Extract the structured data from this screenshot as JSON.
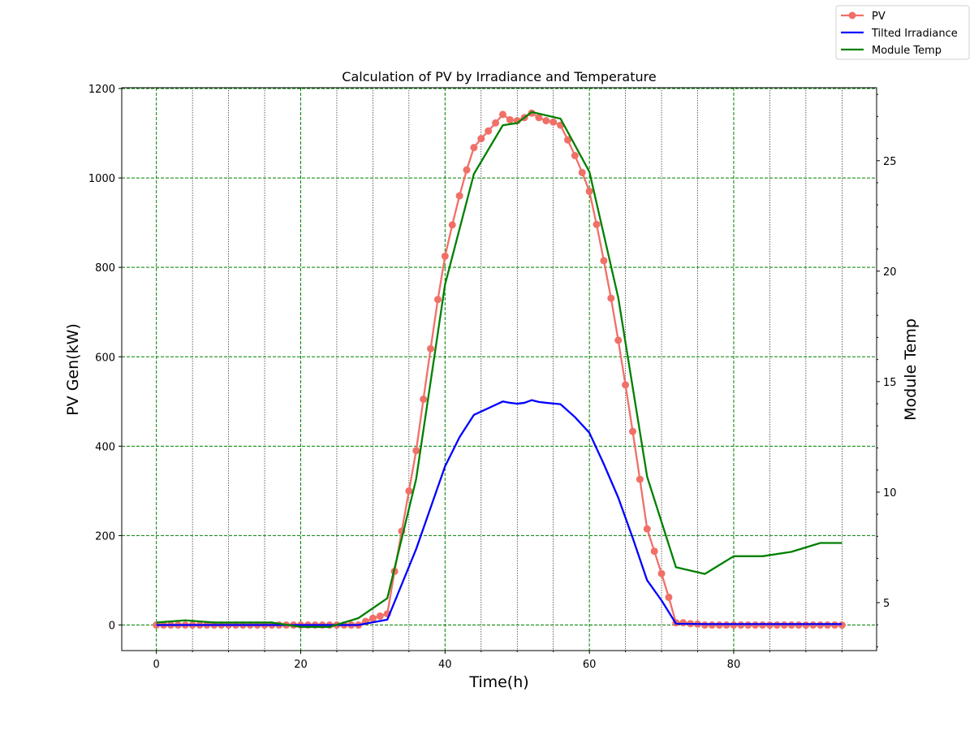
{
  "chart_data": {
    "type": "line",
    "title": "Calculation of PV by Irradiance and Temperature",
    "xlabel": "Time(h)",
    "ylabel": "PV Gen(kW)",
    "y2label": "Module Temp",
    "xlim": [
      -4.8,
      99.8
    ],
    "ylim": [
      -57.2,
      1201.8
    ],
    "y2lim": [
      2.83,
      28.3
    ],
    "xticks": [
      0,
      20,
      40,
      60,
      80
    ],
    "yticks": [
      0,
      200,
      400,
      600,
      800,
      1000,
      1200
    ],
    "y2ticks": [
      5,
      10,
      15,
      20,
      25
    ],
    "x_major_grid": [
      0,
      20,
      40,
      60,
      80
    ],
    "x_minor_grid": [
      5,
      10,
      15,
      25,
      30,
      35,
      45,
      50,
      55,
      65,
      70,
      75,
      85,
      90,
      95
    ],
    "grid": true,
    "legend_position": "top-right",
    "series": [
      {
        "name": "PV",
        "axis": "left",
        "color": "#f07068",
        "marker": "circle",
        "x": [
          0,
          1,
          2,
          3,
          4,
          5,
          6,
          7,
          8,
          9,
          10,
          11,
          12,
          13,
          14,
          15,
          16,
          17,
          18,
          19,
          20,
          21,
          22,
          23,
          24,
          25,
          26,
          27,
          28,
          29,
          30,
          31,
          32,
          33,
          34,
          35,
          36,
          37,
          38,
          39,
          40,
          41,
          42,
          43,
          44,
          45,
          46,
          47,
          48,
          49,
          50,
          51,
          52,
          53,
          54,
          55,
          56,
          57,
          58,
          59,
          60,
          61,
          62,
          63,
          64,
          65,
          66,
          67,
          68,
          69,
          70,
          71,
          72,
          73,
          74,
          75,
          76,
          77,
          78,
          79,
          80,
          81,
          82,
          83,
          84,
          85,
          86,
          87,
          88,
          89,
          90,
          91,
          92,
          93,
          94,
          95
        ],
        "values": [
          0,
          0,
          0,
          0,
          0,
          0,
          0,
          0,
          0,
          0,
          0,
          0,
          0,
          0,
          0,
          0,
          0,
          0,
          0,
          0,
          0,
          0,
          0,
          0,
          0,
          0,
          0,
          0,
          0,
          8,
          15,
          20,
          25,
          120,
          210,
          300,
          390,
          505,
          618,
          728,
          825,
          895,
          960,
          1018,
          1068,
          1088,
          1105,
          1123,
          1142,
          1130,
          1128,
          1135,
          1145,
          1135,
          1128,
          1125,
          1118,
          1085,
          1050,
          1012,
          970,
          896,
          815,
          731,
          637,
          537,
          433,
          326,
          215,
          165,
          115,
          62,
          5,
          5,
          3,
          2,
          0,
          0,
          0,
          0,
          0,
          0,
          0,
          0,
          0,
          0,
          0,
          0,
          0,
          0,
          0,
          0,
          0,
          0,
          0,
          0
        ]
      },
      {
        "name": "Tilted Irradiance",
        "axis": "left",
        "color": "#0000ff",
        "x": [
          0,
          4,
          8,
          12,
          16,
          20,
          24,
          28,
          32,
          36,
          40,
          42,
          44,
          48,
          49,
          50,
          51,
          52,
          53,
          54,
          56,
          58,
          60,
          62,
          64,
          66,
          68,
          70,
          72,
          76,
          80,
          84,
          88,
          92,
          95
        ],
        "values": [
          0,
          0,
          0,
          0,
          0,
          0,
          0,
          0,
          12,
          170,
          355,
          420,
          470,
          500,
          497,
          495,
          497,
          503,
          499,
          497,
          494,
          465,
          430,
          360,
          285,
          195,
          100,
          55,
          3,
          2,
          2,
          2,
          2,
          2,
          2
        ]
      },
      {
        "name": "Module Temp",
        "axis": "right",
        "color": "#008000",
        "x": [
          0,
          4,
          8,
          12,
          16,
          20,
          24,
          28,
          32,
          36,
          40,
          44,
          48,
          50,
          52,
          56,
          60,
          64,
          68,
          72,
          76,
          80,
          84,
          88,
          92,
          95
        ],
        "values": [
          4.1,
          4.2,
          4.1,
          4.1,
          4.1,
          3.9,
          3.9,
          4.3,
          5.2,
          10.6,
          19.4,
          24.4,
          26.6,
          26.7,
          27.2,
          26.9,
          24.5,
          18.8,
          10.7,
          6.6,
          6.3,
          7.1,
          7.1,
          7.3,
          7.7,
          7.7
        ]
      }
    ]
  }
}
